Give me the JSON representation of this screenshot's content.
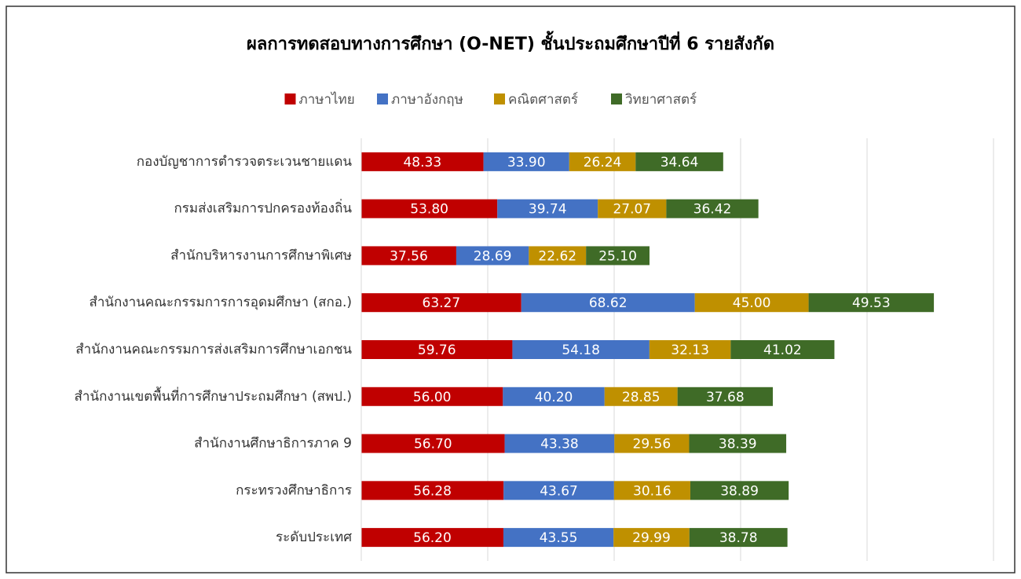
{
  "chart_data": {
    "type": "stacked-barh",
    "title": "ผลการทดสอบทางการศึกษา (O-NET) ชั้นประถมศึกษาปีที่ 6 รายสังกัด",
    "categories": [
      "กองบัญชาการตำรวจตระเวนชายแดน",
      "กรมส่งเสริมการปกครองท้องถิ่น",
      "สำนักบริหารงานการศึกษาพิเศษ",
      "สำนักงานคณะกรรมการการอุดมศึกษา (สกอ.)",
      "สำนักงานคณะกรรมการส่งเสริมการศึกษาเอกชน",
      "สำนักงานเขตพื้นที่การศึกษาประถมศึกษา (สพป.)",
      "สำนักงานศึกษาธิการภาค 9",
      "กระทรวงศึกษาธิการ",
      "ระดับประเทศ"
    ],
    "series": [
      {
        "name": "ภาษาไทย",
        "color": "#c00000",
        "values": [
          48.33,
          53.8,
          37.56,
          63.27,
          59.76,
          56.0,
          56.7,
          56.28,
          56.2
        ],
        "value_labels": [
          "48.33",
          "53.80",
          "37.56",
          "63.27",
          "59.76",
          "56.00",
          "56.70",
          "56.28",
          "56.20"
        ]
      },
      {
        "name": "ภาษาอังกฤษ",
        "color": "#4472c4",
        "values": [
          33.9,
          39.74,
          28.69,
          68.62,
          54.18,
          40.2,
          43.38,
          43.67,
          43.55
        ],
        "value_labels": [
          "33.90",
          "39.74",
          "28.69",
          "68.62",
          "54.18",
          "40.20",
          "43.38",
          "43.67",
          "43.55"
        ]
      },
      {
        "name": "คณิตศาสตร์",
        "color": "#bf9000",
        "values": [
          26.24,
          27.07,
          22.62,
          45.0,
          32.13,
          28.85,
          29.56,
          30.16,
          29.99
        ],
        "value_labels": [
          "26.24",
          "27.07",
          "22.62",
          "45.00",
          "32.13",
          "28.85",
          "29.56",
          "30.16",
          "29.99"
        ]
      },
      {
        "name": "วิทยาศาสตร์",
        "color": "#3f6b27",
        "values": [
          34.64,
          36.42,
          25.1,
          49.53,
          41.02,
          37.68,
          38.39,
          38.89,
          38.78
        ],
        "value_labels": [
          "34.64",
          "36.42",
          "25.10",
          "49.53",
          "41.02",
          "37.68",
          "38.39",
          "38.89",
          "38.78"
        ]
      }
    ],
    "xlim": [
      0,
      250
    ],
    "xticks": [
      0,
      50,
      100,
      150,
      200,
      250
    ],
    "grid": true,
    "legend": "top"
  }
}
